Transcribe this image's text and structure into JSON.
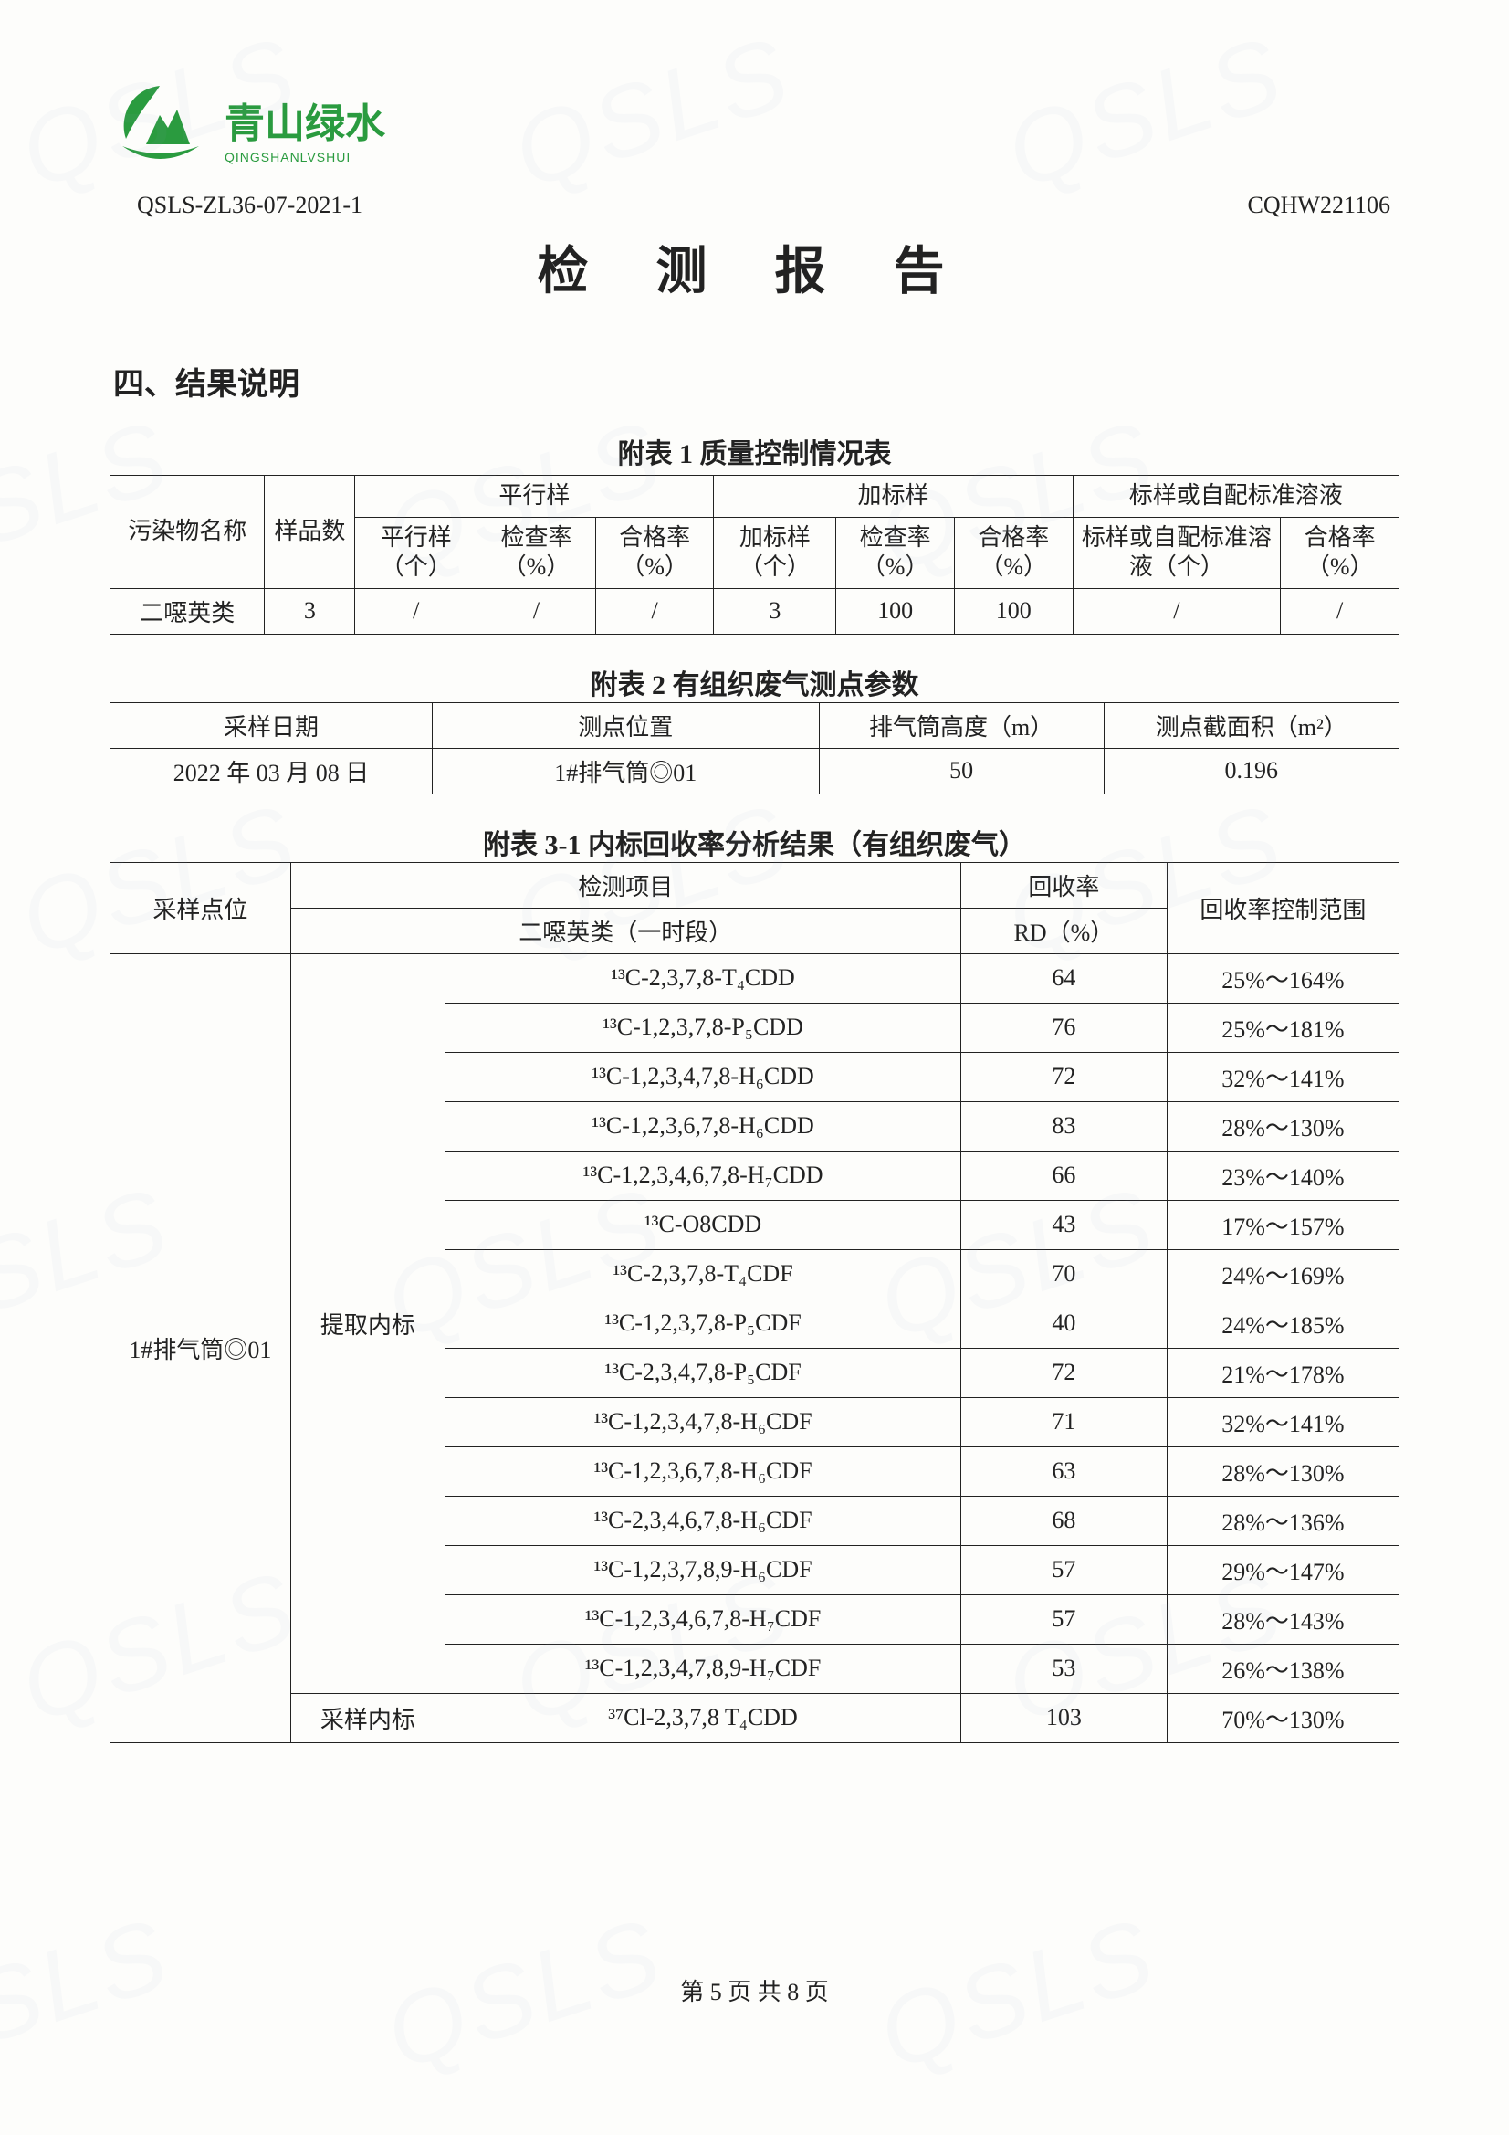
{
  "logo": {
    "cn": "青山绿水",
    "en": "QINGSHANLVSHUI"
  },
  "doc_codes": {
    "left": "QSLS-ZL36-07-2021-1",
    "right": "CQHW221106"
  },
  "title": "检 测 报 告",
  "section": "四、结果说明",
  "watermark": "QSLS",
  "table1": {
    "caption": "附表 1  质量控制情况表",
    "head": {
      "c1": "污染物名称",
      "c2": "样品数",
      "g1": "平行样",
      "g1a": "平行样（个）",
      "g1b": "检查率（%）",
      "g1c": "合格率（%）",
      "g2": "加标样",
      "g2a": "加标样（个）",
      "g2b": "检查率（%）",
      "g2c": "合格率（%）",
      "g3": "标样或自配标准溶液",
      "g3a": "标样或自配标准溶液（个）",
      "g3b": "合格率（%）"
    },
    "row": [
      "二噁英类",
      "3",
      "/",
      "/",
      "/",
      "3",
      "100",
      "100",
      "/",
      "/"
    ]
  },
  "table2": {
    "caption": "附表 2  有组织废气测点参数",
    "head": [
      "采样日期",
      "测点位置",
      "排气筒高度（m）",
      "测点截面积（m²）"
    ],
    "row": [
      "2022 年 03 月 08 日",
      "1#排气筒◎01",
      "50",
      "0.196"
    ]
  },
  "table3": {
    "caption": "附表 3-1  内标回收率分析结果（有组织废气）",
    "head": {
      "c1": "采样点位",
      "c2": "检测项目",
      "c2sub": "二噁英类（一时段）",
      "c3": "回收率",
      "c3sub": "RD（%）",
      "c4": "回收率控制范围"
    },
    "point": "1#排气筒◎01",
    "grp_extract": "提取内标",
    "grp_sample": "采样内标",
    "rows_extract": [
      {
        "item": "¹³C-2,3,7,8-T₄CDD",
        "rd": "64",
        "range": "25%～164%"
      },
      {
        "item": "¹³C-1,2,3,7,8-P₅CDD",
        "rd": "76",
        "range": "25%～181%"
      },
      {
        "item": "¹³C-1,2,3,4,7,8-H₆CDD",
        "rd": "72",
        "range": "32%～141%"
      },
      {
        "item": "¹³C-1,2,3,6,7,8-H₆CDD",
        "rd": "83",
        "range": "28%～130%"
      },
      {
        "item": "¹³C-1,2,3,4,6,7,8-H₇CDD",
        "rd": "66",
        "range": "23%～140%"
      },
      {
        "item": "¹³C-O8CDD",
        "rd": "43",
        "range": "17%～157%"
      },
      {
        "item": "¹³C-2,3,7,8-T₄CDF",
        "rd": "70",
        "range": "24%～169%"
      },
      {
        "item": "¹³C-1,2,3,7,8-P₅CDF",
        "rd": "40",
        "range": "24%～185%"
      },
      {
        "item": "¹³C-2,3,4,7,8-P₅CDF",
        "rd": "72",
        "range": "21%～178%"
      },
      {
        "item": "¹³C-1,2,3,4,7,8-H₆CDF",
        "rd": "71",
        "range": "32%～141%"
      },
      {
        "item": "¹³C-1,2,3,6,7,8-H₆CDF",
        "rd": "63",
        "range": "28%～130%"
      },
      {
        "item": "¹³C-2,3,4,6,7,8-H₆CDF",
        "rd": "68",
        "range": "28%～136%"
      },
      {
        "item": "¹³C-1,2,3,7,8,9-H₆CDF",
        "rd": "57",
        "range": "29%～147%"
      },
      {
        "item": "¹³C-1,2,3,4,6,7,8-H₇CDF",
        "rd": "57",
        "range": "28%～143%"
      },
      {
        "item": "¹³C-1,2,3,4,7,8,9-H₇CDF",
        "rd": "53",
        "range": "26%～138%"
      }
    ],
    "row_sample": {
      "item": "³⁷Cl-2,3,7,8 T₄CDD",
      "rd": "103",
      "range": "70%～130%"
    }
  },
  "footer": "第 5 页 共 8 页"
}
